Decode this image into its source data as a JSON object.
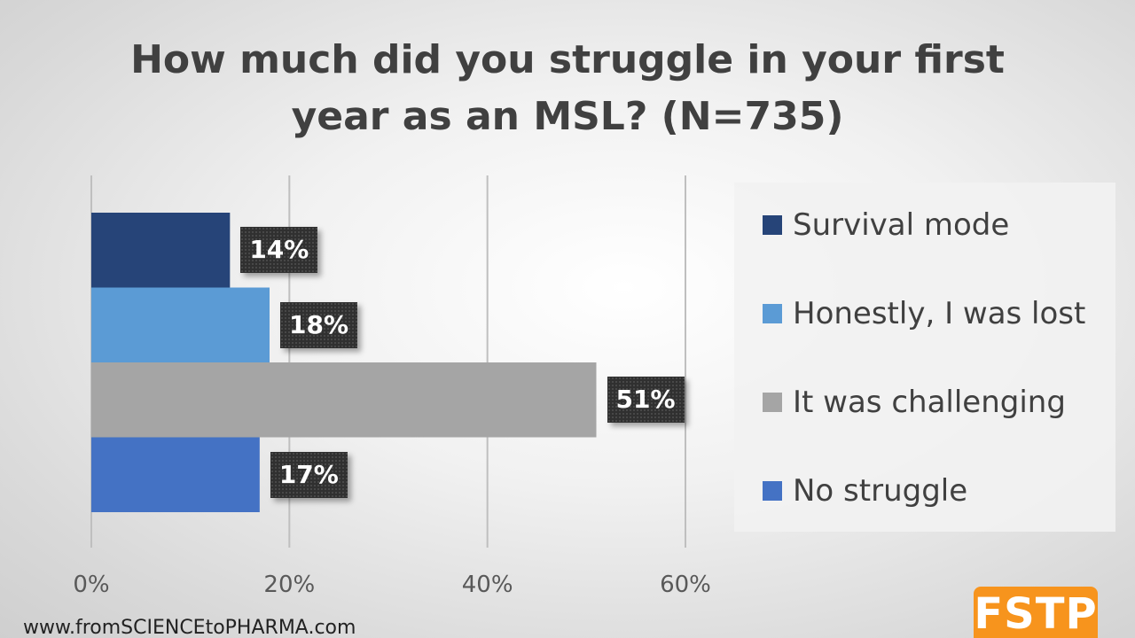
{
  "chart_data": {
    "type": "bar",
    "orientation": "horizontal",
    "title": "How much did you struggle in your first year as an MSL? (N=735)",
    "title_lines": [
      "How much did you struggle in your first",
      "year as an MSL? (N=735)"
    ],
    "categories": [
      "Survival mode",
      "Honestly, I was lost",
      "It was challenging",
      "No struggle"
    ],
    "values": [
      14,
      18,
      51,
      17
    ],
    "data_labels": [
      "14%",
      "18%",
      "51%",
      "17%"
    ],
    "colors": [
      "#264478",
      "#5b9bd5",
      "#a5a5a5",
      "#4472c4"
    ],
    "xlim": [
      0,
      60
    ],
    "x_ticks": [
      0,
      20,
      40,
      60
    ],
    "x_tick_labels": [
      "0%",
      "20%",
      "40%",
      "60%"
    ],
    "grid": true,
    "legend_position": "right"
  },
  "footer": {
    "url": "www.fromSCIENCEtoPHARMA.com",
    "logo_text": "FSTP",
    "logo_color": "#f7941d"
  }
}
